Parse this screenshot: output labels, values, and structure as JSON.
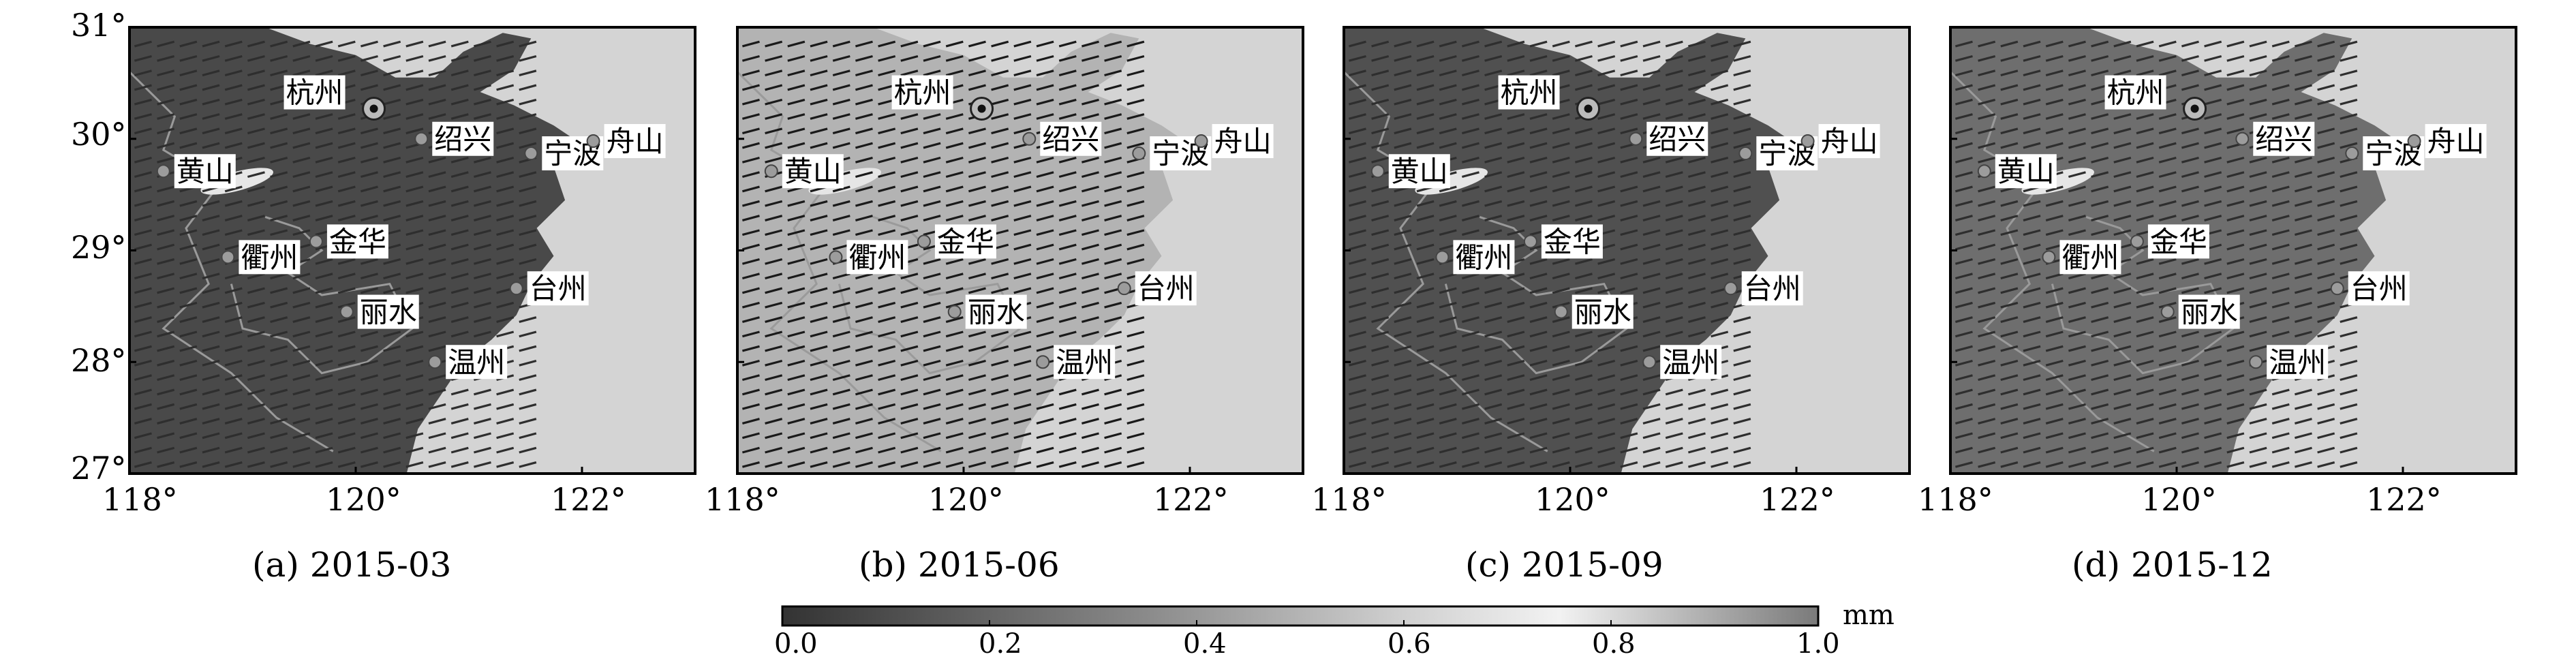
{
  "figure": {
    "colorbar": {
      "ticks": [
        "0.0",
        "0.2",
        "0.4",
        "0.6",
        "0.8",
        "1.0"
      ],
      "unit": "mm",
      "range": [
        0,
        1
      ]
    },
    "x_ticks": [
      "118°",
      "120°",
      "122°"
    ],
    "y_ticks": [
      "31°",
      "30°",
      "29°",
      "28°",
      "27°"
    ],
    "extent": {
      "lon": [
        118,
        123
      ],
      "lat": [
        27,
        31
      ]
    },
    "cities": [
      {
        "name": "杭州",
        "lon": 120.16,
        "lat": 30.27
      },
      {
        "name": "绍兴",
        "lon": 120.58,
        "lat": 30.0
      },
      {
        "name": "宁波",
        "lon": 121.55,
        "lat": 29.87
      },
      {
        "name": "舟山",
        "lon": 122.1,
        "lat": 29.98
      },
      {
        "name": "黄山",
        "lon": 118.3,
        "lat": 29.71
      },
      {
        "name": "金华",
        "lon": 119.65,
        "lat": 29.08
      },
      {
        "name": "衢州",
        "lon": 118.87,
        "lat": 28.94
      },
      {
        "name": "丽水",
        "lon": 119.92,
        "lat": 28.45
      },
      {
        "name": "台州",
        "lon": 121.42,
        "lat": 28.66
      },
      {
        "name": "温州",
        "lon": 120.7,
        "lat": 28.0
      }
    ],
    "panels": [
      {
        "caption": "(a) 2015-03",
        "land_level": 0.12
      },
      {
        "caption": "(b) 2015-06",
        "land_level": 0.58
      },
      {
        "caption": "(c) 2015-09",
        "land_level": 0.15
      },
      {
        "caption": "(d) 2015-12",
        "land_level": 0.28
      }
    ]
  }
}
